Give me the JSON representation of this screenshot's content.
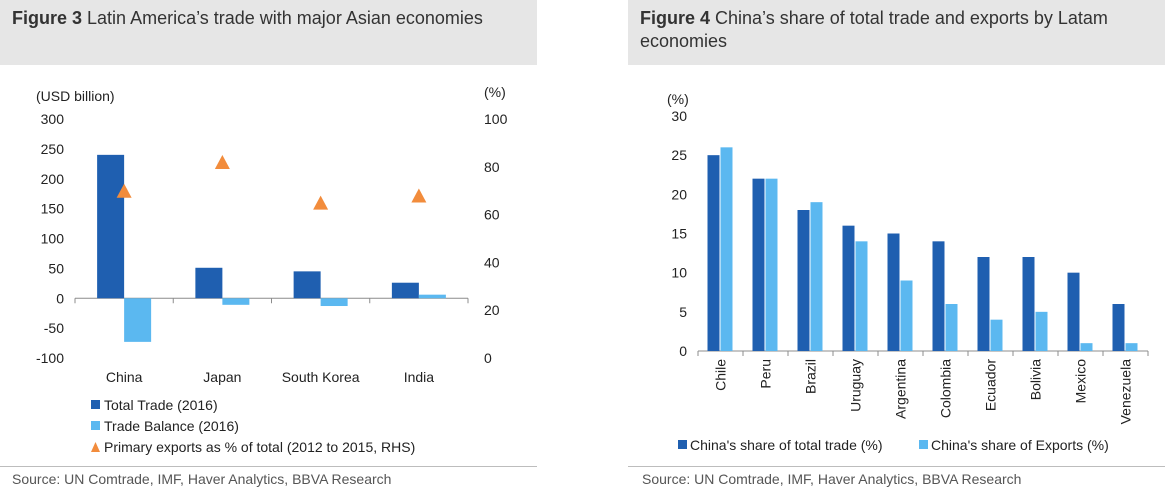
{
  "figure3": {
    "label": "Figure 3",
    "title": "Latin America’s trade with major Asian economies",
    "source": "Source: UN Comtrade, IMF, Haver Analytics, BBVA Research",
    "chart_data": {
      "type": "bar",
      "left_axis_label": "(USD billion)",
      "right_axis_label": "(%)",
      "ylim": [
        -100,
        300
      ],
      "y_ticks": [
        -100,
        -50,
        0,
        50,
        100,
        150,
        200,
        250,
        300
      ],
      "y2lim": [
        0,
        100
      ],
      "y2_ticks": [
        0,
        20,
        40,
        60,
        80,
        100
      ],
      "categories": [
        "China",
        "Japan",
        "South Korea",
        "India"
      ],
      "series": [
        {
          "name": "Total Trade (2016)",
          "kind": "bar",
          "axis": "left",
          "color": "#1f5fb0",
          "values": [
            240,
            51,
            45,
            26
          ]
        },
        {
          "name": "Trade Balance (2016)",
          "kind": "bar",
          "axis": "left",
          "color": "#5bb8f0",
          "values": [
            -73,
            -11,
            -13,
            6
          ]
        },
        {
          "name": "Primary exports as % of total (2012 to 2015, RHS)",
          "kind": "marker",
          "axis": "right",
          "color": "#f28c3c",
          "values": [
            70,
            82,
            65,
            68
          ]
        }
      ],
      "legend_position": "bottom"
    }
  },
  "figure4": {
    "label": "Figure 4",
    "title": "China’s share of total trade and exports by Latam economies",
    "source": "Source:  UN Comtrade, IMF, Haver Analytics, BBVA Research",
    "chart_data": {
      "type": "bar",
      "ylabel": "(%)",
      "ylim": [
        0,
        30
      ],
      "y_ticks": [
        0,
        5,
        10,
        15,
        20,
        25,
        30
      ],
      "categories": [
        "Chile",
        "Peru",
        "Brazil",
        "Uruguay",
        "Argentina",
        "Colombia",
        "Ecuador",
        "Bolivia",
        "Mexico",
        "Venezuela"
      ],
      "series": [
        {
          "name": "China's share of total trade (%)",
          "color": "#1f5fb0",
          "values": [
            25,
            22,
            18,
            16,
            15,
            14,
            12,
            12,
            10,
            6
          ]
        },
        {
          "name": "China's share of Exports (%)",
          "color": "#5bb8f0",
          "values": [
            26,
            22,
            19,
            14,
            9,
            6,
            4,
            5,
            1,
            1
          ]
        }
      ],
      "legend_position": "bottom"
    }
  }
}
